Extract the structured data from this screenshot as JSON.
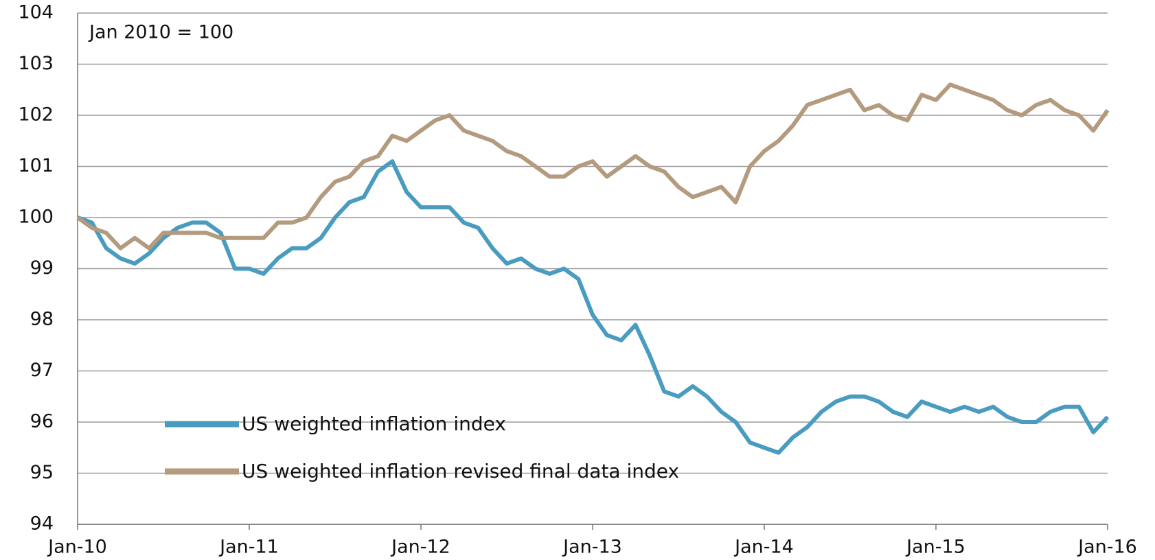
{
  "chart_data": {
    "type": "line",
    "annotation": "Jan 2010 = 100",
    "x": [
      "2010-01",
      "2010-02",
      "2010-03",
      "2010-04",
      "2010-05",
      "2010-06",
      "2010-07",
      "2010-08",
      "2010-09",
      "2010-10",
      "2010-11",
      "2010-12",
      "2011-01",
      "2011-02",
      "2011-03",
      "2011-04",
      "2011-05",
      "2011-06",
      "2011-07",
      "2011-08",
      "2011-09",
      "2011-10",
      "2011-11",
      "2011-12",
      "2012-01",
      "2012-02",
      "2012-03",
      "2012-04",
      "2012-05",
      "2012-06",
      "2012-07",
      "2012-08",
      "2012-09",
      "2012-10",
      "2012-11",
      "2012-12",
      "2013-01",
      "2013-02",
      "2013-03",
      "2013-04",
      "2013-05",
      "2013-06",
      "2013-07",
      "2013-08",
      "2013-09",
      "2013-10",
      "2013-11",
      "2013-12",
      "2014-01",
      "2014-02",
      "2014-03",
      "2014-04",
      "2014-05",
      "2014-06",
      "2014-07",
      "2014-08",
      "2014-09",
      "2014-10",
      "2014-11",
      "2014-12",
      "2015-01",
      "2015-02",
      "2015-03",
      "2015-04",
      "2015-05",
      "2015-06",
      "2015-07",
      "2015-08",
      "2015-09",
      "2015-10",
      "2015-11",
      "2015-12",
      "2016-01"
    ],
    "series": [
      {
        "name": "US weighted inflation index",
        "color": "#4a9bc0",
        "values": [
          100.0,
          99.9,
          99.4,
          99.2,
          99.1,
          99.3,
          99.6,
          99.8,
          99.9,
          99.9,
          99.7,
          99.0,
          99.0,
          98.9,
          99.2,
          99.4,
          99.4,
          99.6,
          100.0,
          100.3,
          100.4,
          100.9,
          101.1,
          100.5,
          100.2,
          100.2,
          100.2,
          99.9,
          99.8,
          99.4,
          99.1,
          99.2,
          99.0,
          98.9,
          99.0,
          98.8,
          98.1,
          97.7,
          97.6,
          97.9,
          97.3,
          96.6,
          96.5,
          96.7,
          96.5,
          96.2,
          96.0,
          95.6,
          95.5,
          95.4,
          95.7,
          95.9,
          96.2,
          96.4,
          96.5,
          96.5,
          96.4,
          96.2,
          96.1,
          96.4,
          96.3,
          96.2,
          96.3,
          96.2,
          96.3,
          96.1,
          96.0,
          96.0,
          96.2,
          96.3,
          96.3,
          95.8,
          96.1
        ]
      },
      {
        "name": "US weighted inflation revised final data index",
        "color": "#b49a7e",
        "values": [
          100.0,
          99.8,
          99.7,
          99.4,
          99.6,
          99.4,
          99.7,
          99.7,
          99.7,
          99.7,
          99.6,
          99.6,
          99.6,
          99.6,
          99.9,
          99.9,
          100.0,
          100.4,
          100.7,
          100.8,
          101.1,
          101.2,
          101.6,
          101.5,
          101.7,
          101.9,
          102.0,
          101.7,
          101.6,
          101.5,
          101.3,
          101.2,
          101.0,
          100.8,
          100.8,
          101.0,
          101.1,
          100.8,
          101.0,
          101.2,
          101.0,
          100.9,
          100.6,
          100.4,
          100.5,
          100.6,
          100.3,
          101.0,
          101.3,
          101.5,
          101.8,
          102.2,
          102.3,
          102.4,
          102.5,
          102.1,
          102.2,
          102.0,
          101.9,
          102.4,
          102.3,
          102.6,
          102.5,
          102.4,
          102.3,
          102.1,
          102.0,
          102.2,
          102.3,
          102.1,
          102.0,
          101.7,
          102.1
        ]
      }
    ],
    "xlim": [
      "2010-01",
      "2016-01"
    ],
    "xticks": [
      {
        "value": "2010-01",
        "label": "Jan-10"
      },
      {
        "value": "2011-01",
        "label": "Jan-11"
      },
      {
        "value": "2012-01",
        "label": "Jan-12"
      },
      {
        "value": "2013-01",
        "label": "Jan-13"
      },
      {
        "value": "2014-01",
        "label": "Jan-14"
      },
      {
        "value": "2015-01",
        "label": "Jan-15"
      },
      {
        "value": "2016-01",
        "label": "Jan-16"
      }
    ],
    "ylim": [
      94,
      104
    ],
    "yticks": [
      94,
      95,
      96,
      97,
      98,
      99,
      100,
      101,
      102,
      103,
      104
    ],
    "grid": true
  }
}
